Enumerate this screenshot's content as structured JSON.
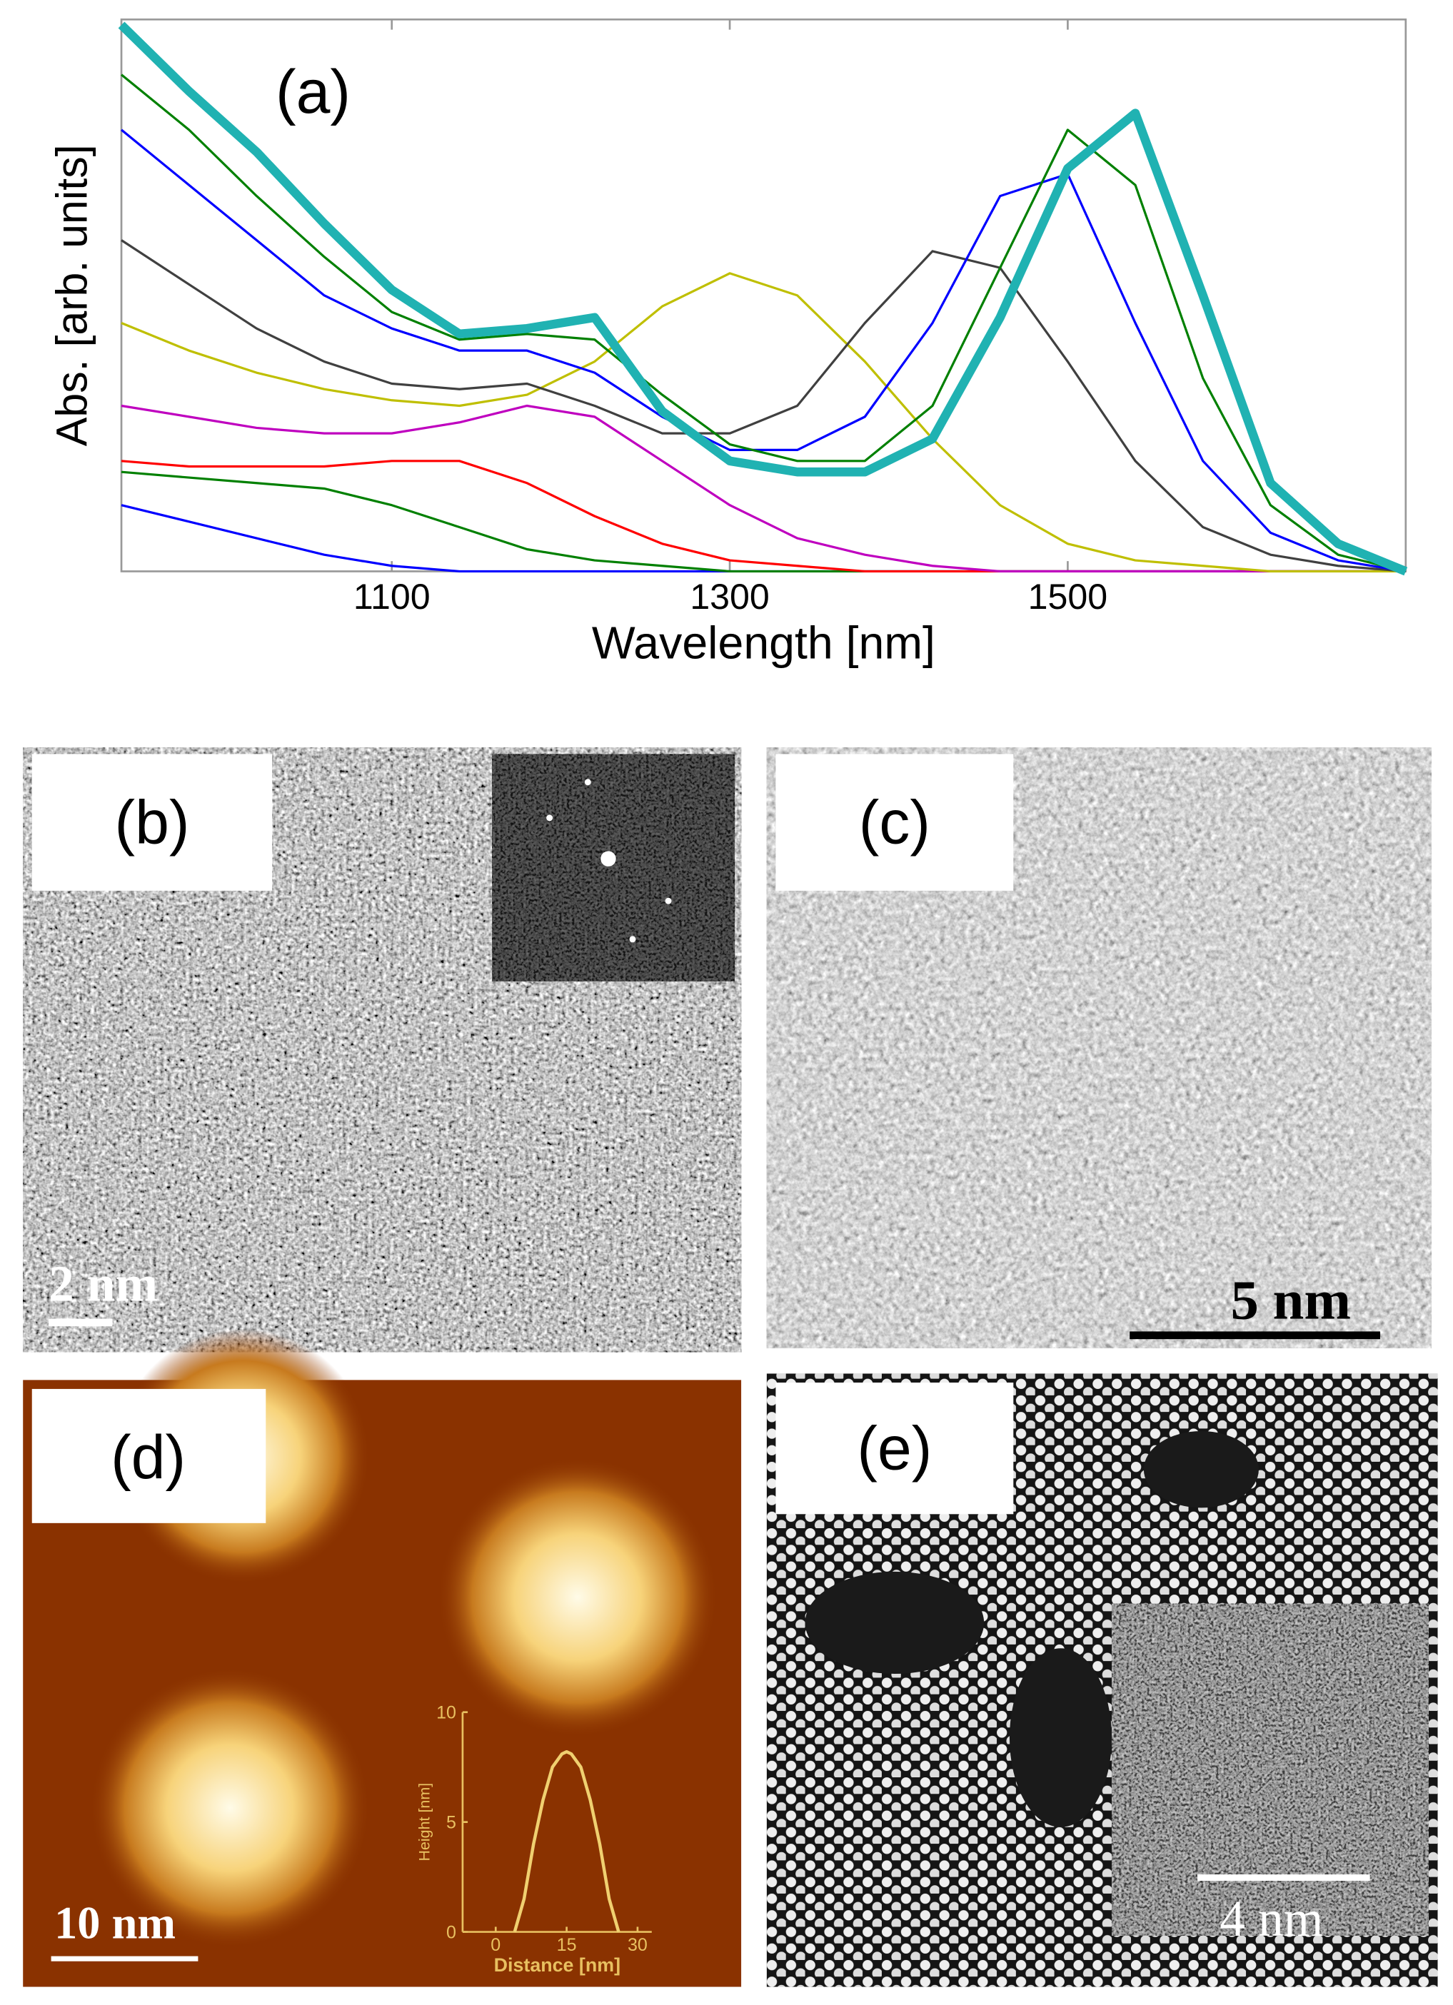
{
  "chart_data": [
    {
      "type": "line",
      "panel_label": "(a)",
      "x_label": "Wavelength [nm]",
      "y_label": "Abs. [arb. units]",
      "x": [
        940,
        980,
        1020,
        1060,
        1100,
        1140,
        1180,
        1220,
        1260,
        1300,
        1340,
        1380,
        1420,
        1460,
        1500,
        1540,
        1580,
        1620,
        1660,
        1700
      ],
      "xlim": [
        940,
        1700
      ],
      "xticks": [
        1100,
        1300,
        1500
      ],
      "ylim": [
        0,
        1
      ],
      "series": [
        {
          "color": "#0000ff",
          "values": [
            0.12,
            0.09,
            0.06,
            0.03,
            0.01,
            0,
            0,
            0,
            0,
            0,
            0,
            0,
            0,
            0,
            0,
            0,
            0,
            0,
            0,
            0
          ]
        },
        {
          "color": "#008000",
          "values": [
            0.18,
            0.17,
            0.16,
            0.15,
            0.12,
            0.08,
            0.04,
            0.02,
            0.01,
            0,
            0,
            0,
            0,
            0,
            0,
            0,
            0,
            0,
            0,
            0
          ]
        },
        {
          "color": "#ff0000",
          "values": [
            0.2,
            0.19,
            0.19,
            0.19,
            0.2,
            0.2,
            0.16,
            0.1,
            0.05,
            0.02,
            0.01,
            0,
            0,
            0,
            0,
            0,
            0,
            0,
            0,
            0
          ]
        },
        {
          "color": "#bf00bf",
          "values": [
            0.3,
            0.28,
            0.26,
            0.25,
            0.25,
            0.27,
            0.3,
            0.28,
            0.2,
            0.12,
            0.06,
            0.03,
            0.01,
            0,
            0,
            0,
            0,
            0,
            0,
            0
          ]
        },
        {
          "color": "#bfbf00",
          "values": [
            0.45,
            0.4,
            0.36,
            0.33,
            0.31,
            0.3,
            0.32,
            0.38,
            0.48,
            0.54,
            0.5,
            0.38,
            0.24,
            0.12,
            0.05,
            0.02,
            0.01,
            0,
            0,
            0
          ]
        },
        {
          "color": "#404040",
          "values": [
            0.6,
            0.52,
            0.44,
            0.38,
            0.34,
            0.33,
            0.34,
            0.3,
            0.25,
            0.25,
            0.3,
            0.45,
            0.58,
            0.55,
            0.38,
            0.2,
            0.08,
            0.03,
            0.01,
            0
          ]
        },
        {
          "color": "#0000ff",
          "values": [
            0.8,
            0.7,
            0.6,
            0.5,
            0.44,
            0.4,
            0.4,
            0.36,
            0.28,
            0.22,
            0.22,
            0.28,
            0.45,
            0.68,
            0.72,
            0.45,
            0.2,
            0.07,
            0.02,
            0
          ]
        },
        {
          "color": "#008000",
          "values": [
            0.9,
            0.8,
            0.68,
            0.57,
            0.47,
            0.42,
            0.43,
            0.42,
            0.32,
            0.23,
            0.2,
            0.2,
            0.3,
            0.55,
            0.8,
            0.7,
            0.35,
            0.12,
            0.03,
            0
          ]
        },
        {
          "color": "#20b2b2",
          "values": [
            0.99,
            0.87,
            0.76,
            0.63,
            0.51,
            0.43,
            0.44,
            0.46,
            0.29,
            0.2,
            0.18,
            0.18,
            0.24,
            0.46,
            0.73,
            0.83,
            0.5,
            0.16,
            0.05,
            0
          ]
        }
      ]
    },
    {
      "type": "line",
      "x_label": "Distance [nm]",
      "y_label": "Height [nm]",
      "x": [
        4,
        6,
        8,
        10,
        12,
        14,
        15,
        16,
        18,
        20,
        22,
        24,
        26
      ],
      "xlim": [
        -7,
        33
      ],
      "xticks": [
        0,
        15,
        30
      ],
      "ylim": [
        0,
        10
      ],
      "yticks": [
        0,
        5,
        10
      ],
      "series": [
        {
          "color": "#f0d070",
          "values": [
            0,
            1.5,
            4,
            6,
            7.5,
            8.1,
            8.2,
            8.1,
            7.5,
            6,
            4,
            1.5,
            0
          ]
        }
      ]
    }
  ],
  "panels": {
    "b": {
      "label": "(b)",
      "scale_bar": "2 nm"
    },
    "c": {
      "label": "(c)",
      "scale_bar": "5 nm"
    },
    "d": {
      "label": "(d)",
      "scale_bar": "10 nm"
    },
    "e": {
      "label": "(e)",
      "scale_bar": "4 nm"
    }
  }
}
